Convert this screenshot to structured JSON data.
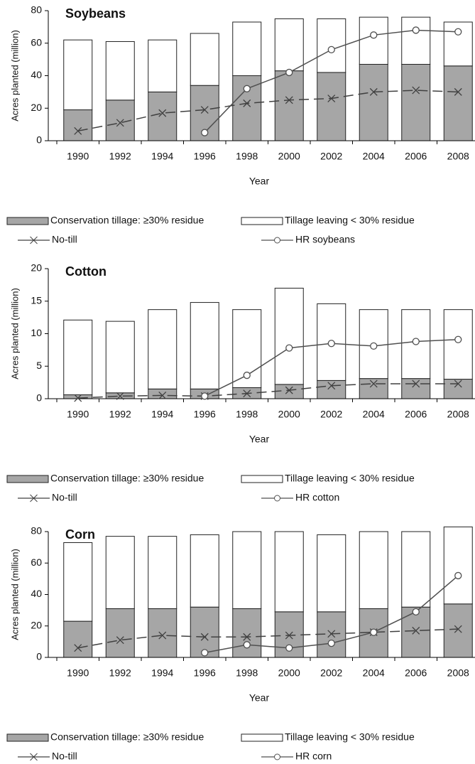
{
  "chart_data": [
    {
      "type": "bar",
      "title": "Soybeans",
      "x_label": "Year",
      "y_label": "Acres planted (million)",
      "stacked": true,
      "categories": [
        "1990",
        "1992",
        "1994",
        "1996",
        "1998",
        "2000",
        "2002",
        "2004",
        "2006",
        "2008"
      ],
      "ylim": [
        0,
        80
      ],
      "yticks": [
        0,
        20,
        40,
        60,
        80
      ],
      "series": [
        {
          "name": "Conservation tillage: ≥30% residue",
          "type": "bar",
          "color": "#a6a6a6",
          "values": [
            19,
            25,
            30,
            34,
            40,
            43,
            42,
            47,
            47,
            46
          ]
        },
        {
          "name": "Tillage leaving < 30% residue",
          "type": "bar",
          "color": "#ffffff",
          "values": [
            43,
            36,
            32,
            32,
            33,
            32,
            33,
            29,
            29,
            27
          ]
        },
        {
          "name": "No-till",
          "type": "line",
          "dashed": true,
          "marker": "x",
          "color": "#404040",
          "values": [
            6,
            11,
            17,
            19,
            23,
            25,
            26,
            30,
            31,
            30
          ]
        },
        {
          "name": "HR soybeans",
          "type": "line",
          "dashed": false,
          "marker": "o",
          "color": "#505050",
          "values": [
            null,
            null,
            null,
            5,
            32,
            42,
            56,
            65,
            68,
            67
          ]
        }
      ]
    },
    {
      "type": "bar",
      "title": "Cotton",
      "x_label": "Year",
      "y_label": "Acres planted (million)",
      "stacked": true,
      "categories": [
        "1990",
        "1992",
        "1994",
        "1996",
        "1998",
        "2000",
        "2002",
        "2004",
        "2006",
        "2008"
      ],
      "ylim": [
        0,
        20
      ],
      "yticks": [
        0,
        5,
        10,
        15,
        20
      ],
      "series": [
        {
          "name": "Conservation tillage: ≥30% residue",
          "type": "bar",
          "color": "#a6a6a6",
          "values": [
            0.6,
            0.9,
            1.5,
            1.5,
            1.7,
            2.2,
            2.8,
            3.1,
            3.1,
            3.0
          ]
        },
        {
          "name": "Tillage leaving < 30% residue",
          "type": "bar",
          "color": "#ffffff",
          "values": [
            11.5,
            11.0,
            12.2,
            13.3,
            12.0,
            14.8,
            11.8,
            10.6,
            10.6,
            10.7
          ]
        },
        {
          "name": "No-till",
          "type": "line",
          "dashed": true,
          "marker": "x",
          "color": "#404040",
          "values": [
            0.1,
            0.4,
            0.5,
            0.4,
            0.8,
            1.3,
            2.0,
            2.3,
            2.3,
            2.3
          ]
        },
        {
          "name": "HR cotton",
          "type": "line",
          "dashed": false,
          "marker": "o",
          "color": "#505050",
          "values": [
            null,
            null,
            null,
            0.4,
            3.6,
            7.8,
            8.5,
            8.1,
            8.8,
            9.1
          ]
        }
      ]
    },
    {
      "type": "bar",
      "title": "Corn",
      "x_label": "Year",
      "y_label": "Acres planted (million)",
      "stacked": true,
      "categories": [
        "1990",
        "1992",
        "1994",
        "1996",
        "1998",
        "2000",
        "2002",
        "2004",
        "2006",
        "2008"
      ],
      "ylim": [
        0,
        80
      ],
      "yticks": [
        0,
        20,
        40,
        60,
        80
      ],
      "series": [
        {
          "name": "Conservation tillage: ≥30% residue",
          "type": "bar",
          "color": "#a6a6a6",
          "values": [
            23,
            31,
            31,
            32,
            31,
            29,
            29,
            31,
            32,
            34
          ]
        },
        {
          "name": "Tillage leaving < 30% residue",
          "type": "bar",
          "color": "#ffffff",
          "values": [
            50,
            46,
            46,
            46,
            49,
            51,
            49,
            49,
            48,
            49
          ]
        },
        {
          "name": "No-till",
          "type": "line",
          "dashed": true,
          "marker": "x",
          "color": "#404040",
          "values": [
            6,
            11,
            14,
            13,
            13,
            14,
            15,
            16,
            17,
            18
          ]
        },
        {
          "name": "HR corn",
          "type": "line",
          "dashed": false,
          "marker": "o",
          "color": "#505050",
          "values": [
            null,
            null,
            null,
            3,
            8,
            6,
            9,
            16,
            29,
            52
          ]
        }
      ]
    }
  ]
}
